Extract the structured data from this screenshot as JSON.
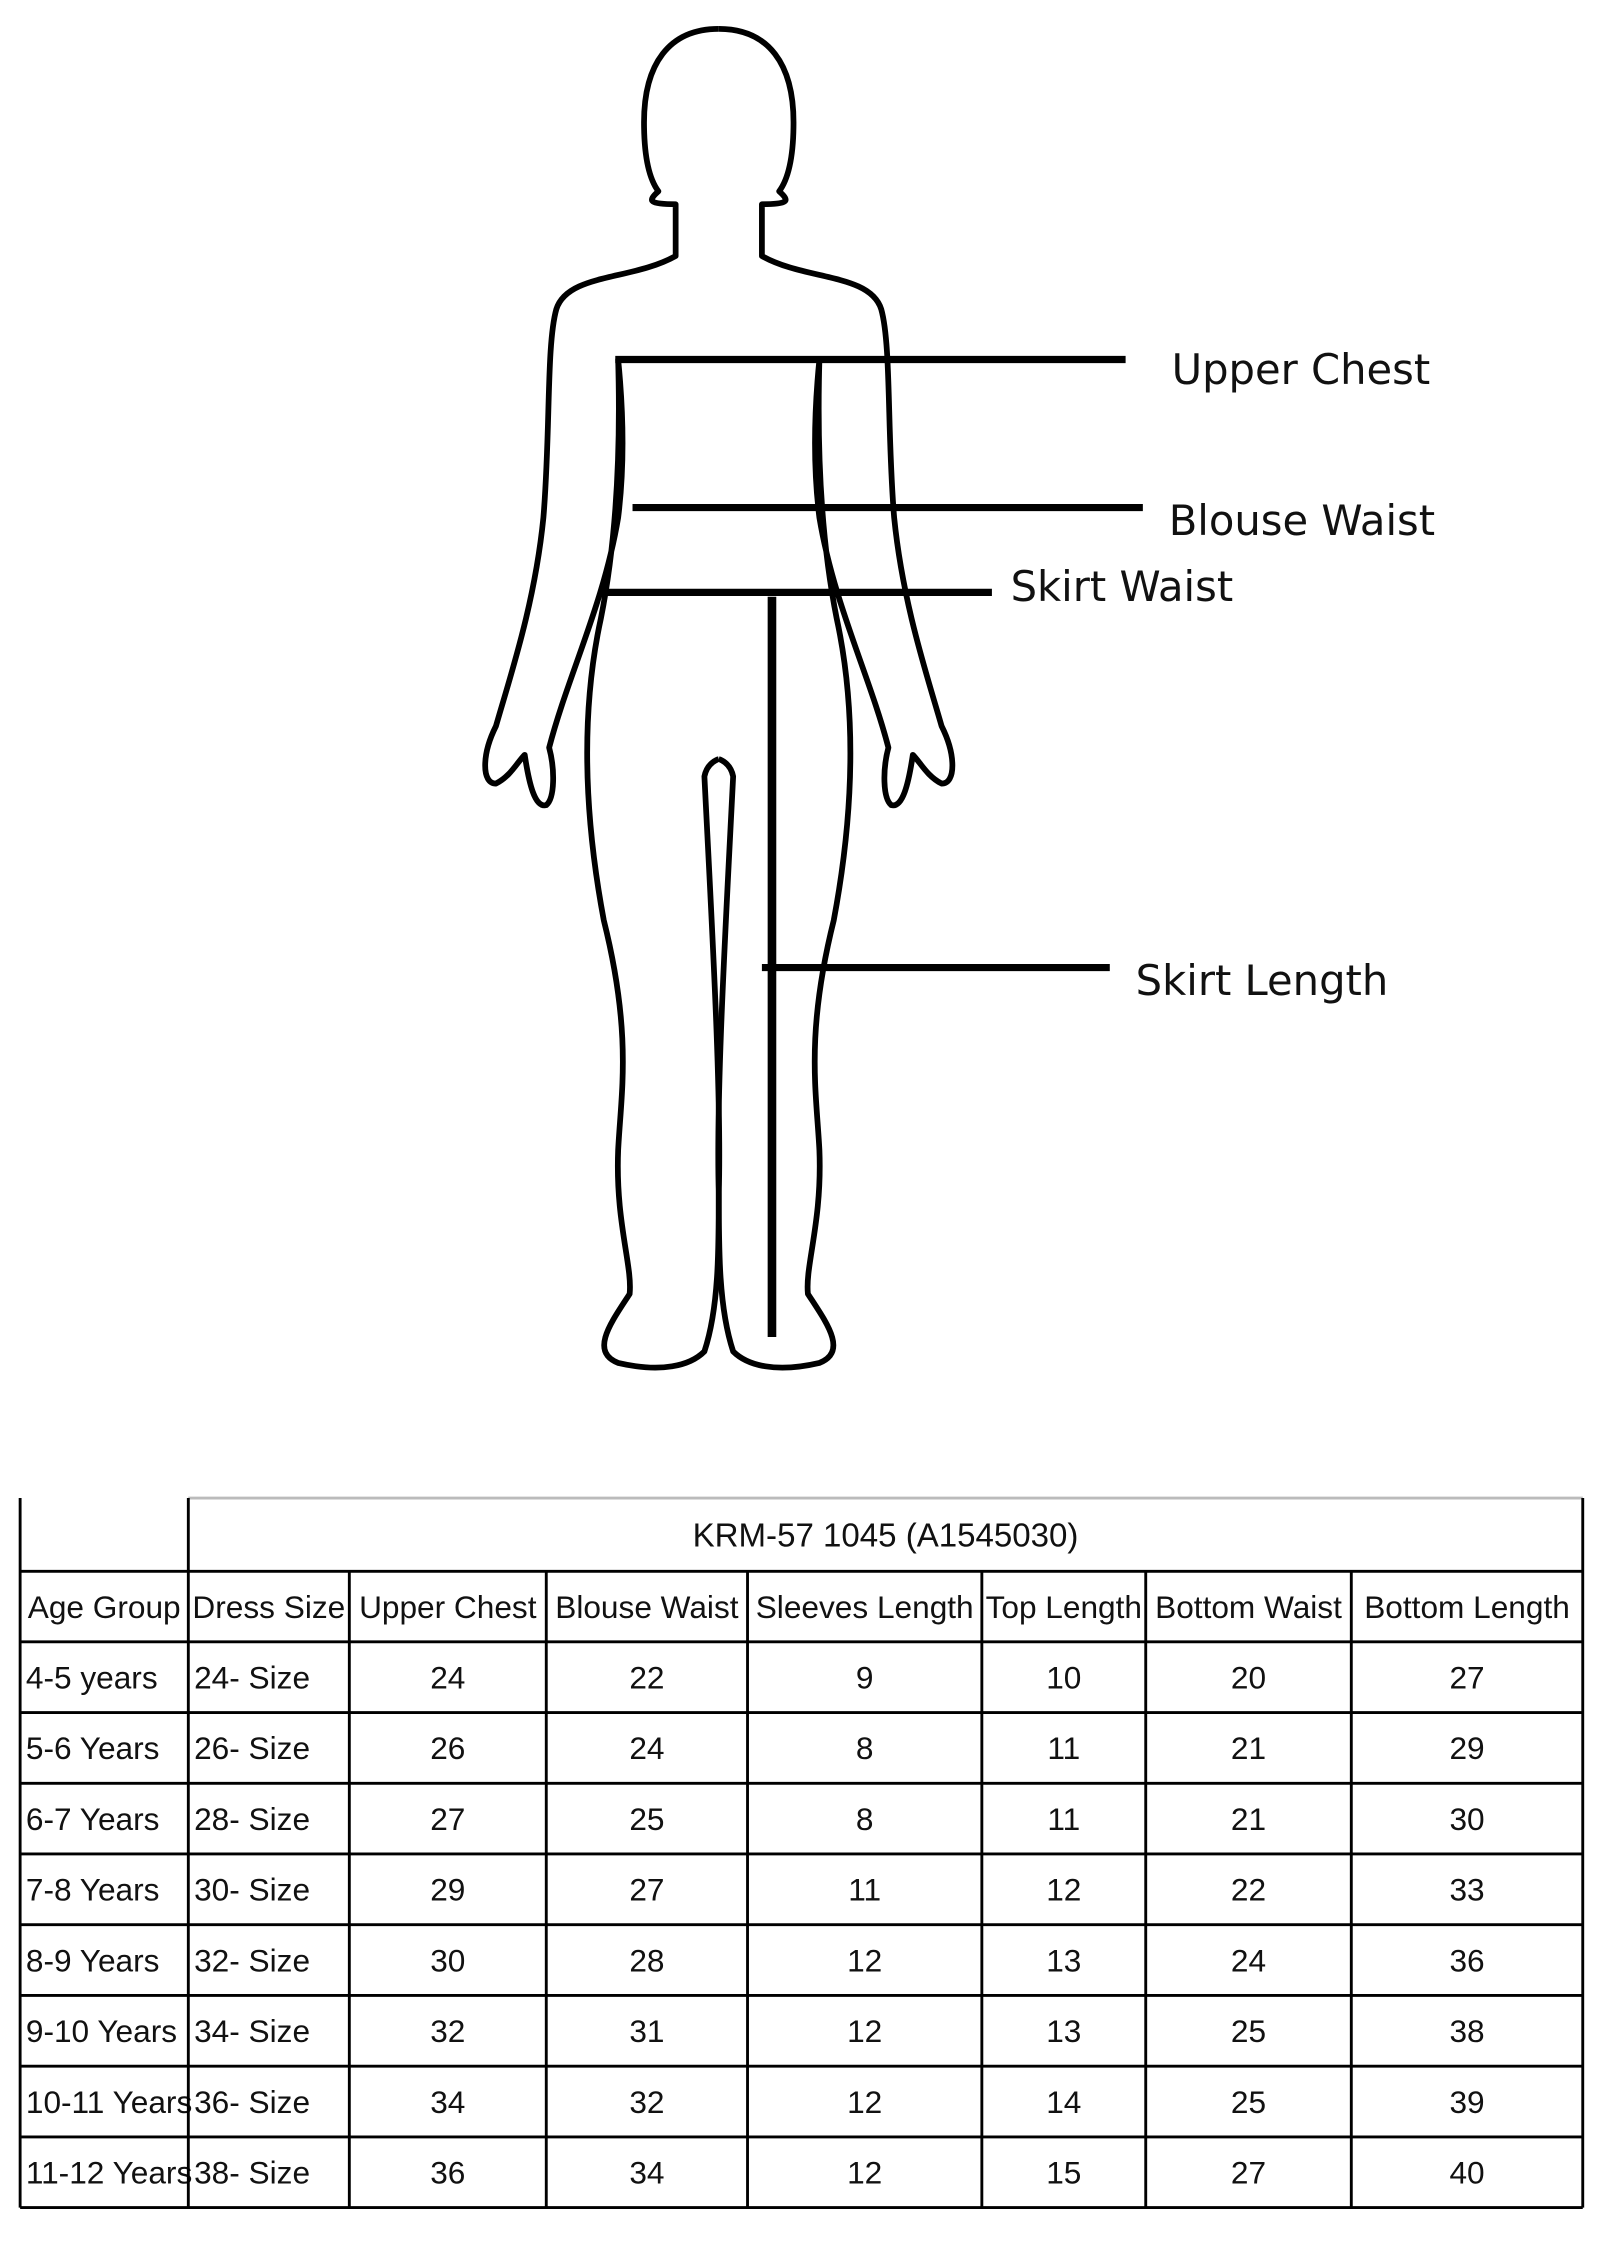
{
  "diagram": {
    "labels": [
      "Upper Chest",
      "Blouse Waist",
      "Skirt Waist",
      "Skirt Length"
    ]
  },
  "table": {
    "title": "KRM-57 1045 (A1545030)",
    "header": [
      "Age Group",
      "Dress Size",
      "Upper Chest",
      "Blouse Waist",
      "Sleeves Length",
      "Top Length",
      "Bottom Waist",
      "Bottom Length"
    ],
    "rows": [
      [
        "4-5 years",
        "24- Size",
        24,
        22,
        9,
        10,
        20,
        27
      ],
      [
        "5-6 Years",
        "26- Size",
        26,
        24,
        8,
        11,
        21,
        29
      ],
      [
        "6-7 Years",
        "28- Size",
        27,
        25,
        8,
        11,
        21,
        30
      ],
      [
        "7-8 Years",
        "30- Size",
        29,
        27,
        11,
        12,
        22,
        33
      ],
      [
        "8-9 Years",
        "32- Size",
        30,
        28,
        12,
        13,
        24,
        36
      ],
      [
        "9-10 Years",
        "34- Size",
        32,
        31,
        12,
        13,
        25,
        38
      ],
      [
        "10-11 Years",
        "36- Size",
        34,
        32,
        12,
        14,
        25,
        39
      ],
      [
        "11-12 Years",
        "38- Size",
        36,
        34,
        12,
        15,
        27,
        40
      ]
    ]
  }
}
